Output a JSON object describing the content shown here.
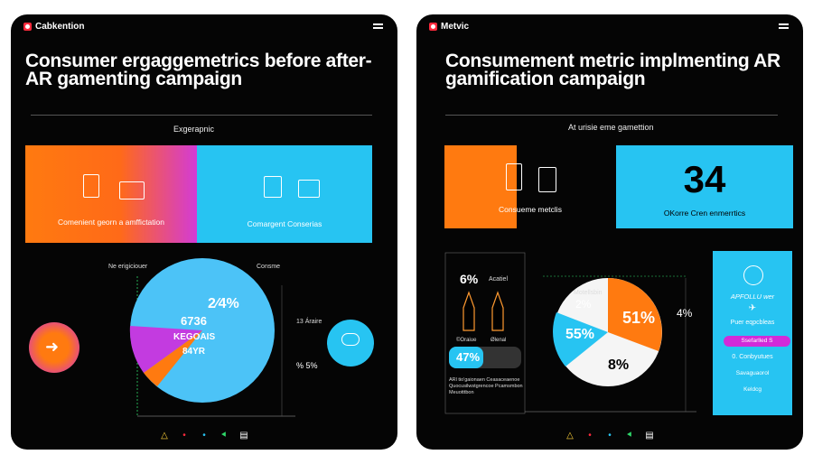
{
  "left": {
    "brand": "Cabkention",
    "title": "Consumer ergaggemetrics before after-AR gamenting campaign",
    "subtitle": "Exgerapnic",
    "tile_left_caption": "Comenient georn a amffictation",
    "tile_right_caption": "Comargent Conserias",
    "pie_top_label": "Ne erigiciouer",
    "pie_top_label2": "Consme",
    "pie_stat_pct": "2⁄4%",
    "pie_stat_a": "6736",
    "pie_stat_b": "KEGOAIS",
    "pie_stat_c": "84YR",
    "side_label_a": "13 Áraire",
    "side_label_b": "% 5%"
  },
  "right": {
    "brand": "Metvic",
    "title": "Consumement metric implmenting AR gamification campaign",
    "subtitle": "At urisie eme gamettion",
    "tile_left_caption": "Consueme metclis",
    "big_number": "34",
    "tile_right_caption": "OKorre Cren enmerrtics",
    "stat_a": "6%",
    "stat_a_label": "Acatiel",
    "bar_pct": "47%",
    "micro_a": "©Oraiue",
    "micro_b": "Ølenal",
    "footnote": "ARl tio'gaionaen Ceasaceaenoe Quocusilwstgrencoe Pcamsmbon Meuotttbon",
    "pie_label": "Motellsbin",
    "pie_pct_a": "2%",
    "pie_pct_b": "51%",
    "pie_pct_c": "55%",
    "pie_pct_d": "8%",
    "pie_side": "4%",
    "side_title": "APFOLLU wer",
    "side_sub": "Puer eqpcbleas",
    "side_pill": "Ssefarlled S",
    "side_line": "0. Conbyutues",
    "side_line2": "Savaguaorol",
    "side_line3": "Keldcg"
  },
  "icons": [
    "warning-icon",
    "dot-icon",
    "dot-icon",
    "send-icon",
    "doc-icon"
  ],
  "colors": {
    "orange": "#ff7a10",
    "cyan": "#27c4f2",
    "magenta": "#d22ad9",
    "panel": "#050505"
  }
}
